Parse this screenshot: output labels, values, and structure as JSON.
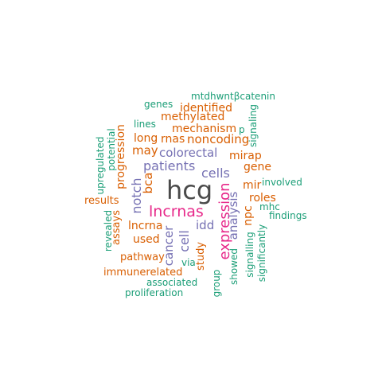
{
  "palette": {
    "green": "#1b9e77",
    "orange": "#d95f02",
    "purple": "#7570b3",
    "magenta": "#e7298a",
    "dark": "#4a4a4a"
  },
  "words": [
    {
      "text": "hcg",
      "color": "dark",
      "rotate": false
    },
    {
      "text": "lncrnas",
      "color": "magenta",
      "rotate": false
    },
    {
      "text": "expression",
      "color": "magenta",
      "rotate": true
    },
    {
      "text": "patients",
      "color": "purple",
      "rotate": false
    },
    {
      "text": "colorectal",
      "color": "purple",
      "rotate": false
    },
    {
      "text": "cells",
      "color": "purple",
      "rotate": false
    },
    {
      "text": "notch",
      "color": "purple",
      "rotate": true
    },
    {
      "text": "analysis",
      "color": "purple",
      "rotate": true
    },
    {
      "text": "cell",
      "color": "purple",
      "rotate": true
    },
    {
      "text": "cancer",
      "color": "purple",
      "rotate": true
    },
    {
      "text": "idd",
      "color": "purple",
      "rotate": false
    },
    {
      "text": "noncoding",
      "color": "orange",
      "rotate": false
    },
    {
      "text": "mechanism",
      "color": "orange",
      "rotate": false
    },
    {
      "text": "methylated",
      "color": "orange",
      "rotate": false
    },
    {
      "text": "identified",
      "color": "orange",
      "rotate": false
    },
    {
      "text": "rnas",
      "color": "orange",
      "rotate": false
    },
    {
      "text": "long",
      "color": "orange",
      "rotate": false
    },
    {
      "text": "may",
      "color": "orange",
      "rotate": false
    },
    {
      "text": "progression",
      "color": "orange",
      "rotate": true
    },
    {
      "text": "bca",
      "color": "orange",
      "rotate": true
    },
    {
      "text": "mirap",
      "color": "orange",
      "rotate": false
    },
    {
      "text": "gene",
      "color": "orange",
      "rotate": false
    },
    {
      "text": "mir",
      "color": "orange",
      "rotate": false
    },
    {
      "text": "roles",
      "color": "orange",
      "rotate": false
    },
    {
      "text": "npc",
      "color": "orange",
      "rotate": true
    },
    {
      "text": "results",
      "color": "orange",
      "rotate": false
    },
    {
      "text": "assays",
      "color": "orange",
      "rotate": true
    },
    {
      "text": "lncrna",
      "color": "orange",
      "rotate": false
    },
    {
      "text": "used",
      "color": "orange",
      "rotate": false
    },
    {
      "text": "pathway",
      "color": "orange",
      "rotate": false
    },
    {
      "text": "immunerelated",
      "color": "orange",
      "rotate": false
    },
    {
      "text": "study",
      "color": "orange",
      "rotate": true
    },
    {
      "text": "mtdhwntβcatenin",
      "color": "green",
      "rotate": false
    },
    {
      "text": "genes",
      "color": "green",
      "rotate": false
    },
    {
      "text": "lines",
      "color": "green",
      "rotate": false
    },
    {
      "text": "p",
      "color": "green",
      "rotate": false
    },
    {
      "text": "signaling",
      "color": "green",
      "rotate": true
    },
    {
      "text": "upregulated",
      "color": "green",
      "rotate": true
    },
    {
      "text": "potential",
      "color": "green",
      "rotate": true
    },
    {
      "text": "involved",
      "color": "green",
      "rotate": false
    },
    {
      "text": "mhc",
      "color": "green",
      "rotate": false
    },
    {
      "text": "findings",
      "color": "green",
      "rotate": false
    },
    {
      "text": "revealed",
      "color": "green",
      "rotate": true
    },
    {
      "text": "via",
      "color": "green",
      "rotate": false
    },
    {
      "text": "associated",
      "color": "green",
      "rotate": false
    },
    {
      "text": "proliferation",
      "color": "green",
      "rotate": false
    },
    {
      "text": "group",
      "color": "green",
      "rotate": true
    },
    {
      "text": "showed",
      "color": "green",
      "rotate": true
    },
    {
      "text": "signalling",
      "color": "green",
      "rotate": true
    },
    {
      "text": "significantly",
      "color": "green",
      "rotate": true
    }
  ]
}
